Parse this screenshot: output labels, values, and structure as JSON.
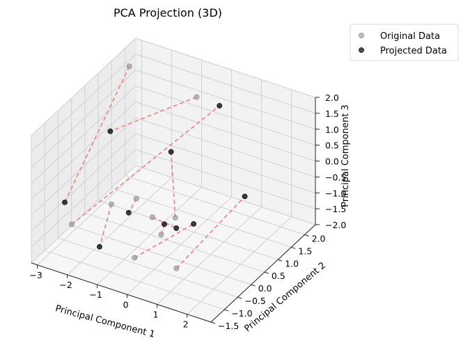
{
  "chart_data": {
    "type": "scatter",
    "subtype": "3d-scatter",
    "title": "PCA Projection (3D)",
    "xlabel": "Principal Component 1",
    "ylabel": "Principal Component 2",
    "zlabel": "Principal Component 3",
    "xlim": [
      -3.2,
      2.8
    ],
    "ylim": [
      -1.5,
      2.4
    ],
    "zlim": [
      -2,
      2
    ],
    "xticks": [
      "−3",
      "−2",
      "−1",
      "0",
      "1",
      "2"
    ],
    "yticks": [
      "−1.5",
      "−1.0",
      "−0.5",
      "0.0",
      "0.5",
      "1.0",
      "1.5",
      "2.0"
    ],
    "zticks": [
      "−2.0",
      "−1.5",
      "−1.0",
      "−0.5",
      "0.0",
      "0.5",
      "1.0",
      "1.5",
      "2.0"
    ],
    "grid": true,
    "legend_position": "upper-right-outside",
    "series": [
      {
        "name": "Original Data",
        "color": "#9e9e9e",
        "points": [
          [
            -2.7,
            1.6,
            1.9
          ],
          [
            -0.9,
            2.1,
            1.1
          ],
          [
            -1.6,
            -0.3,
            -0.6
          ],
          [
            -1.3,
            0.3,
            -0.8
          ],
          [
            -0.5,
            0.0,
            -0.9
          ],
          [
            0.0,
            0.3,
            -1.0
          ],
          [
            0.6,
            -0.9,
            -0.4
          ],
          [
            -0.2,
            -1.0,
            -1.3
          ],
          [
            -2.3,
            -1.0,
            -0.9
          ],
          [
            1.2,
            -1.0,
            -1.2
          ]
        ]
      },
      {
        "name": "Projected Data",
        "color": "#1a1a1a",
        "points": [
          [
            -2.8,
            -0.7,
            -0.6
          ],
          [
            -2.8,
            1.0,
            0.3
          ],
          [
            0.4,
            1.5,
            1.7
          ],
          [
            -0.5,
            0.7,
            0.6
          ],
          [
            -1.2,
            -0.1,
            -0.9
          ],
          [
            -0.1,
            0.0,
            -1.0
          ],
          [
            0.3,
            0.0,
            -1.0
          ],
          [
            0.7,
            0.2,
            -0.9
          ],
          [
            -1.1,
            -1.3,
            -1.0
          ],
          [
            2.5,
            0.1,
            0.6
          ]
        ]
      }
    ],
    "projection_lines": [
      {
        "from": [
          -2.7,
          1.6,
          1.9
        ],
        "to": [
          -2.8,
          -0.7,
          -0.6
        ]
      },
      {
        "from": [
          -0.9,
          2.1,
          1.1
        ],
        "to": [
          -2.8,
          1.0,
          0.3
        ]
      },
      {
        "from": [
          -1.6,
          -0.3,
          -0.6
        ],
        "to": [
          -1.1,
          -1.3,
          -1.0
        ]
      },
      {
        "from": [
          -1.3,
          0.3,
          -0.8
        ],
        "to": [
          -1.2,
          -0.1,
          -0.9
        ]
      },
      {
        "from": [
          -0.5,
          0.0,
          -0.9
        ],
        "to": [
          0.3,
          0.0,
          -1.0
        ]
      },
      {
        "from": [
          0.0,
          0.3,
          -1.0
        ],
        "to": [
          -0.5,
          0.7,
          0.6
        ]
      },
      {
        "from": [
          0.6,
          -0.9,
          -0.4
        ],
        "to": [
          -0.1,
          0.0,
          -1.0
        ]
      },
      {
        "from": [
          -0.2,
          -1.0,
          -1.3
        ],
        "to": [
          0.7,
          0.2,
          -0.9
        ]
      },
      {
        "from": [
          -2.3,
          -1.0,
          -0.9
        ],
        "to": [
          0.4,
          1.5,
          1.7
        ]
      },
      {
        "from": [
          1.2,
          -1.0,
          -1.2
        ],
        "to": [
          2.5,
          0.1,
          0.6
        ]
      }
    ],
    "projection_line_color": "#f08080"
  }
}
